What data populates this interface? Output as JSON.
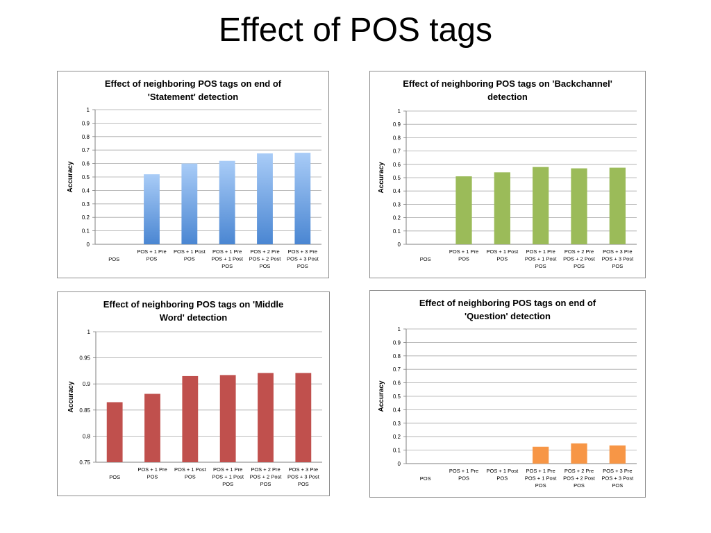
{
  "slide": {
    "title": "Effect of POS tags"
  },
  "chart_data": [
    {
      "type": "bar",
      "title": "Effect of neighboring POS tags on end of 'Statement' detection",
      "title_lines": [
        "Effect of neighboring POS tags on end of",
        "'Statement' detection"
      ],
      "xlabel": "",
      "ylabel": "Accuracy",
      "ylim": [
        0,
        1
      ],
      "yticks": [
        "0",
        "0.1",
        "0.2",
        "0.3",
        "0.4",
        "0.5",
        "0.6",
        "0.7",
        "0.8",
        "0.9",
        "1"
      ],
      "categories": [
        "POS",
        "POS + 1 Pre POS",
        "POS + 1 Post POS",
        "POS + 1 Pre POS + 1 Post POS",
        "POS + 2 Pre POS + 2 Post POS",
        "POS + 3 Pre POS + 3 Post POS"
      ],
      "category_lines": [
        [
          "POS"
        ],
        [
          "POS + 1 Pre",
          "POS"
        ],
        [
          "POS + 1 Post",
          "POS"
        ],
        [
          "POS + 1 Pre",
          "POS + 1 Post",
          "POS"
        ],
        [
          "POS + 2 Pre",
          "POS + 2 Post",
          "POS"
        ],
        [
          "POS + 3 Pre",
          "POS + 3 Post",
          "POS"
        ]
      ],
      "values": [
        0,
        0.52,
        0.6,
        0.62,
        0.675,
        0.68
      ],
      "color": "#4a86d2",
      "color_light": "#a9ccf7",
      "gradient": true,
      "grid": true,
      "legend": "none"
    },
    {
      "type": "bar",
      "title": "Effect of neighboring POS tags on 'Backchannel' detection",
      "title_lines": [
        "Effect of neighboring POS tags on 'Backchannel'",
        "detection"
      ],
      "xlabel": "",
      "ylabel": "Accuracy",
      "ylim": [
        0,
        1
      ],
      "yticks": [
        "0",
        "0.1",
        "0.2",
        "0.3",
        "0.4",
        "0.5",
        "0.6",
        "0.7",
        "0.8",
        "0.9",
        "1"
      ],
      "categories": [
        "POS",
        "POS + 1 Pre POS",
        "POS + 1 Post POS",
        "POS + 1 Pre POS + 1 Post POS",
        "POS + 2 Pre POS + 2 Post POS",
        "POS + 3 Pre POS + 3 Post POS"
      ],
      "category_lines": [
        [
          "POS"
        ],
        [
          "POS + 1 Pre",
          "POS"
        ],
        [
          "POS + 1 Post",
          "POS"
        ],
        [
          "POS + 1 Pre",
          "POS + 1 Post",
          "POS"
        ],
        [
          "POS + 2 Pre",
          "POS + 2 Post",
          "POS"
        ],
        [
          "POS + 3 Pre",
          "POS + 3 Post",
          "POS"
        ]
      ],
      "values": [
        0,
        0.51,
        0.54,
        0.58,
        0.57,
        0.575
      ],
      "color": "#9bbb59",
      "gradient": false,
      "grid": true,
      "legend": "none"
    },
    {
      "type": "bar",
      "title": "Effect of neighboring POS tags on 'Middle Word' detection",
      "title_lines": [
        "Effect of neighboring POS tags on 'Middle",
        "Word' detection"
      ],
      "xlabel": "",
      "ylabel": "Accuracy",
      "ylim": [
        0.75,
        1
      ],
      "yticks": [
        "0.75",
        "0.8",
        "0.85",
        "0.9",
        "0.95",
        "1"
      ],
      "categories": [
        "POS",
        "POS + 1 Pre POS",
        "POS + 1 Post POS",
        "POS + 1 Pre POS + 1 Post POS",
        "POS + 2 Pre POS + 2 Post POS",
        "POS + 3 Pre POS + 3 Post POS"
      ],
      "category_lines": [
        [
          "POS"
        ],
        [
          "POS + 1 Pre",
          "POS"
        ],
        [
          "POS + 1 Post",
          "POS"
        ],
        [
          "POS + 1 Pre",
          "POS + 1 Post",
          "POS"
        ],
        [
          "POS + 2 Pre",
          "POS + 2 Post",
          "POS"
        ],
        [
          "POS + 3 Pre",
          "POS + 3 Post",
          "POS"
        ]
      ],
      "values": [
        0.865,
        0.881,
        0.915,
        0.917,
        0.921,
        0.921
      ],
      "color": "#c0504d",
      "gradient": false,
      "grid": true,
      "legend": "none"
    },
    {
      "type": "bar",
      "title": "Effect of neighboring POS tags on end of 'Question' detection",
      "title_lines": [
        "Effect of neighboring POS tags on end of",
        "'Question' detection"
      ],
      "xlabel": "",
      "ylabel": "Accuracy",
      "ylim": [
        0,
        1
      ],
      "yticks": [
        "0",
        "0.1",
        "0.2",
        "0.3",
        "0.4",
        "0.5",
        "0.6",
        "0.7",
        "0.8",
        "0.9",
        "1"
      ],
      "categories": [
        "POS",
        "POS + 1 Pre POS",
        "POS + 1 Post POS",
        "POS + 1 Pre POS + 1 Post POS",
        "POS + 2 Pre POS + 2 Post POS",
        "POS + 3 Pre POS + 3 Post POS"
      ],
      "category_lines": [
        [
          "POS"
        ],
        [
          "POS + 1 Pre",
          "POS"
        ],
        [
          "POS + 1 Post",
          "POS"
        ],
        [
          "POS + 1 Pre",
          "POS + 1 Post",
          "POS"
        ],
        [
          "POS + 2 Pre",
          "POS + 2 Post",
          "POS"
        ],
        [
          "POS + 3 Pre",
          "POS + 3 Post",
          "POS"
        ]
      ],
      "values": [
        0,
        0,
        0,
        0.125,
        0.15,
        0.135
      ],
      "color": "#f79646",
      "gradient": false,
      "grid": true,
      "legend": "none"
    }
  ]
}
